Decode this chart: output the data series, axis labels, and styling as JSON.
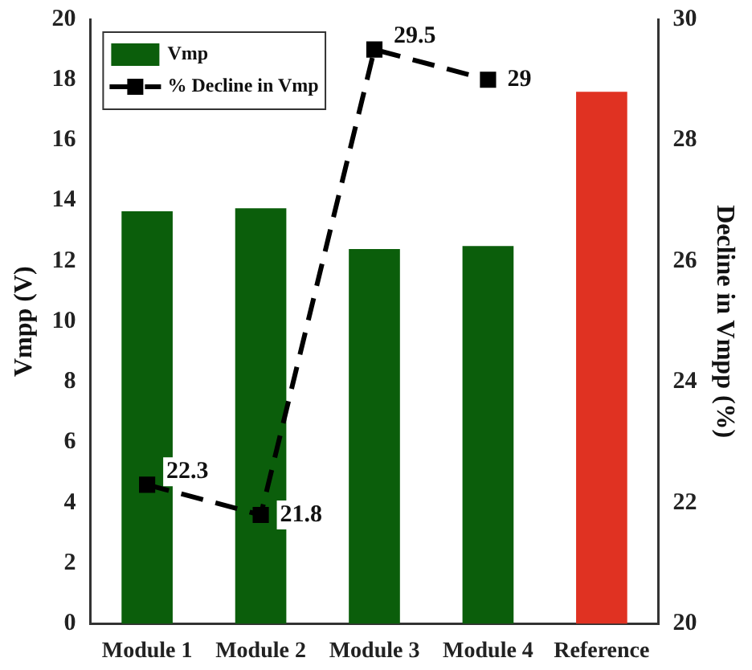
{
  "chart_data": {
    "type": "bar",
    "categories": [
      "Module 1",
      "Module 2",
      "Module 3",
      "Module 4",
      "Reference"
    ],
    "ylabel": "Vmpp (V)",
    "y2label": "Decline in Vmpp (%)",
    "series": [
      {
        "name": "Vmp",
        "color": "#0b5e0b",
        "colors": [
          "#0b5e0b",
          "#0b5e0b",
          "#0b5e0b",
          "#0b5e0b",
          "#e03222"
        ],
        "values": [
          13.65,
          13.75,
          12.4,
          12.5,
          17.6
        ]
      },
      {
        "name": "% Decline in Vmp",
        "type": "line",
        "axis": "y2",
        "color": "#000000",
        "marker": "square",
        "line_style": "dashed",
        "values": [
          22.3,
          21.8,
          29.5,
          29,
          null
        ],
        "value_labels": [
          "22.3",
          "21.8",
          "29.5",
          "29",
          null
        ]
      }
    ],
    "ylim": [
      0,
      20
    ],
    "yticks": [
      0,
      2,
      4,
      6,
      8,
      10,
      12,
      14,
      16,
      18,
      20
    ],
    "y2lim": [
      20,
      30
    ],
    "y2ticks": [
      20,
      22,
      24,
      26,
      28,
      30
    ],
    "legend": "top left",
    "grid": false
  }
}
